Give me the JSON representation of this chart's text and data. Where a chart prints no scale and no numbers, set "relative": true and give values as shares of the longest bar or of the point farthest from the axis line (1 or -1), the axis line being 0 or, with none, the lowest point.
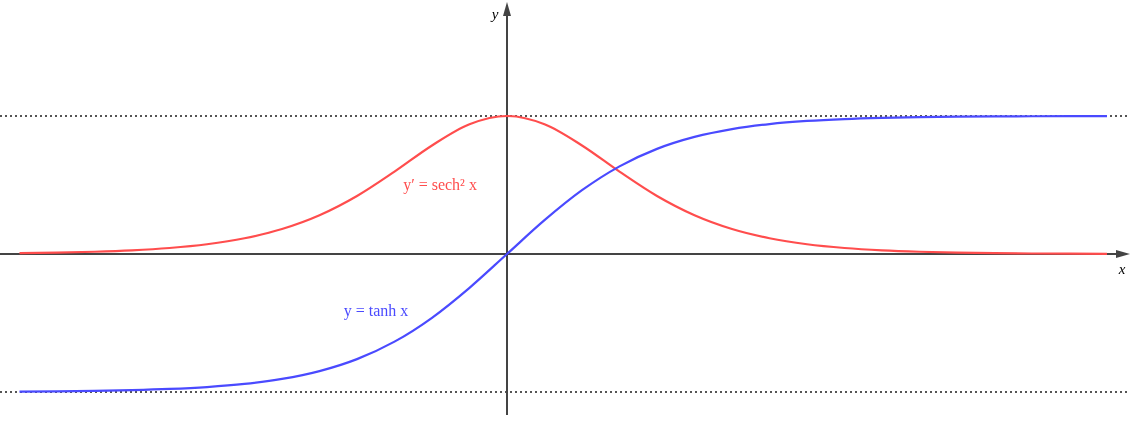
{
  "chart_data": {
    "type": "line",
    "relative": true,
    "xlabel": "x",
    "categories": [
      null,
      null,
      null,
      null,
      null,
      null,
      null,
      null,
      null,
      null,
      null,
      null,
      null,
      null,
      null,
      null,
      null,
      null,
      null,
      null,
      null,
      null,
      null,
      null,
      null,
      null,
      null,
      null,
      null,
      null
    ],
    "series": [
      {
        "color": "#ff4d4d",
        "values": [
          0.006,
          0.0099,
          0.0163,
          0.0266,
          0.0436,
          0.0707,
          0.1138,
          0.1807,
          0.2805,
          0.42,
          0.5966,
          0.7864,
          0.94,
          1,
          0.94,
          0.7864,
          0.5966,
          0.42,
          0.2805,
          0.1807,
          0.1138,
          0.0707,
          0.0436,
          0.0266,
          0.0163,
          0.0099,
          0.006,
          0.0036,
          0.0022,
          0.0013
        ]
      },
      {
        "color": "#4a4aff",
        "values": [
          -0.997,
          -0.9951,
          -0.9919,
          -0.9866,
          -0.978,
          -0.964,
          -0.9414,
          -0.9051,
          -0.8483,
          -0.7616,
          -0.6351,
          -0.4621,
          -0.2449,
          0,
          0.2449,
          0.4621,
          0.6351,
          0.7616,
          0.8483,
          0.9051,
          0.9414,
          0.964,
          0.978,
          0.9866,
          0.9919,
          0.9951,
          0.997,
          0.9982,
          0.9989,
          0.9993
        ]
      }
    ],
    "ref_lines": [
      {
        "axis": "y",
        "value": 1,
        "line_style": "dotted",
        "color": "#555555"
      },
      {
        "axis": "y",
        "value": -1,
        "line_style": "dotted",
        "color": "#555555"
      }
    ],
    "annotations": [
      "y′ = sech² x",
      "y = tanh x",
      "y"
    ],
    "line_style": "solid"
  }
}
